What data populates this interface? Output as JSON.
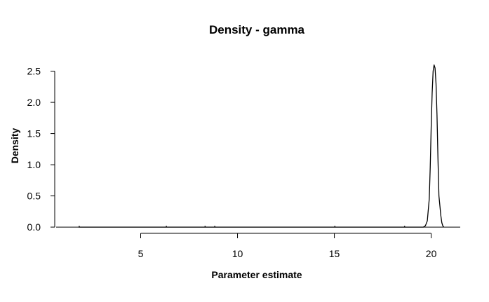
{
  "chart_data": {
    "type": "line",
    "title": "Density - gamma",
    "xlabel": "Parameter estimate",
    "ylabel": "Density",
    "xlim": [
      0.2,
      21.5
    ],
    "ylim": [
      -0.1,
      2.72
    ],
    "x_ticks": [
      "5",
      "10",
      "15",
      "20"
    ],
    "y_ticks": [
      "0.0",
      "0.5",
      "1.0",
      "1.5",
      "2.0",
      "2.5"
    ],
    "grid": false,
    "legend": "none",
    "line_color": "#000000",
    "series": [
      {
        "x": [
          1.8,
          6.3,
          8.3,
          8.8,
          15.0,
          18.6,
          19.6,
          19.7,
          19.8,
          19.9,
          19.95,
          20.0,
          20.05,
          20.1,
          20.15,
          20.2,
          20.25,
          20.3,
          20.35,
          20.4,
          20.45,
          20.5,
          20.55,
          20.6,
          20.65
        ],
        "y": [
          0.0,
          0.0,
          0.0,
          0.0,
          0.0,
          0.0,
          0.0,
          0.02,
          0.1,
          0.45,
          0.95,
          1.6,
          2.15,
          2.5,
          2.6,
          2.55,
          2.3,
          1.8,
          1.1,
          0.5,
          0.34,
          0.18,
          0.07,
          0.02,
          0.0
        ]
      }
    ]
  }
}
